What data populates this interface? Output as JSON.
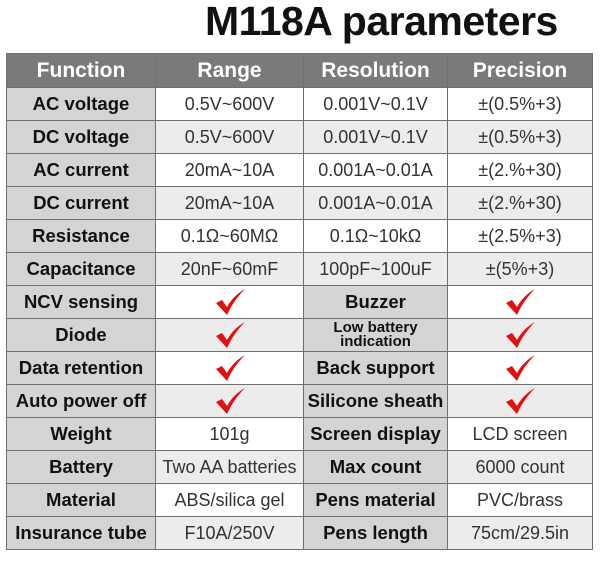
{
  "title": "M118A parameters",
  "headers": [
    "Function",
    "Range",
    "Resolution",
    "Precision"
  ],
  "rows": [
    [
      "AC voltage",
      "0.5V~600V",
      "0.001V~0.1V",
      "±(0.5%+3)"
    ],
    [
      "DC voltage",
      "0.5V~600V",
      "0.001V~0.1V",
      "±(0.5%+3)"
    ],
    [
      "AC current",
      "20mA~10A",
      "0.001A~0.01A",
      "±(2.%+30)"
    ],
    [
      "DC current",
      "20mA~10A",
      "0.001A~0.01A",
      "±(2.%+30)"
    ],
    [
      "Resistance",
      "0.1Ω~60MΩ",
      "0.1Ω~10kΩ",
      "±(2.5%+3)"
    ],
    [
      "Capacitance",
      "20nF~60mF",
      "100pF~100uF",
      "±(5%+3)"
    ]
  ],
  "features": [
    [
      "NCV sensing",
      "Buzzer"
    ],
    [
      "Diode",
      "Low battery indication"
    ],
    [
      "Data retention",
      "Back support"
    ],
    [
      "Auto power off",
      "Silicone sheath"
    ]
  ],
  "specs": [
    [
      "Weight",
      "101g",
      "Screen display",
      "LCD screen"
    ],
    [
      "Battery",
      "Two AA batteries",
      "Max count",
      "6000 count"
    ],
    [
      "Material",
      "ABS/silica gel",
      "Pens material",
      "PVC/brass"
    ],
    [
      "Insurance tube",
      "F10A/250V",
      "Pens length",
      "75cm/29.5in"
    ]
  ],
  "check_color": "#e01010"
}
